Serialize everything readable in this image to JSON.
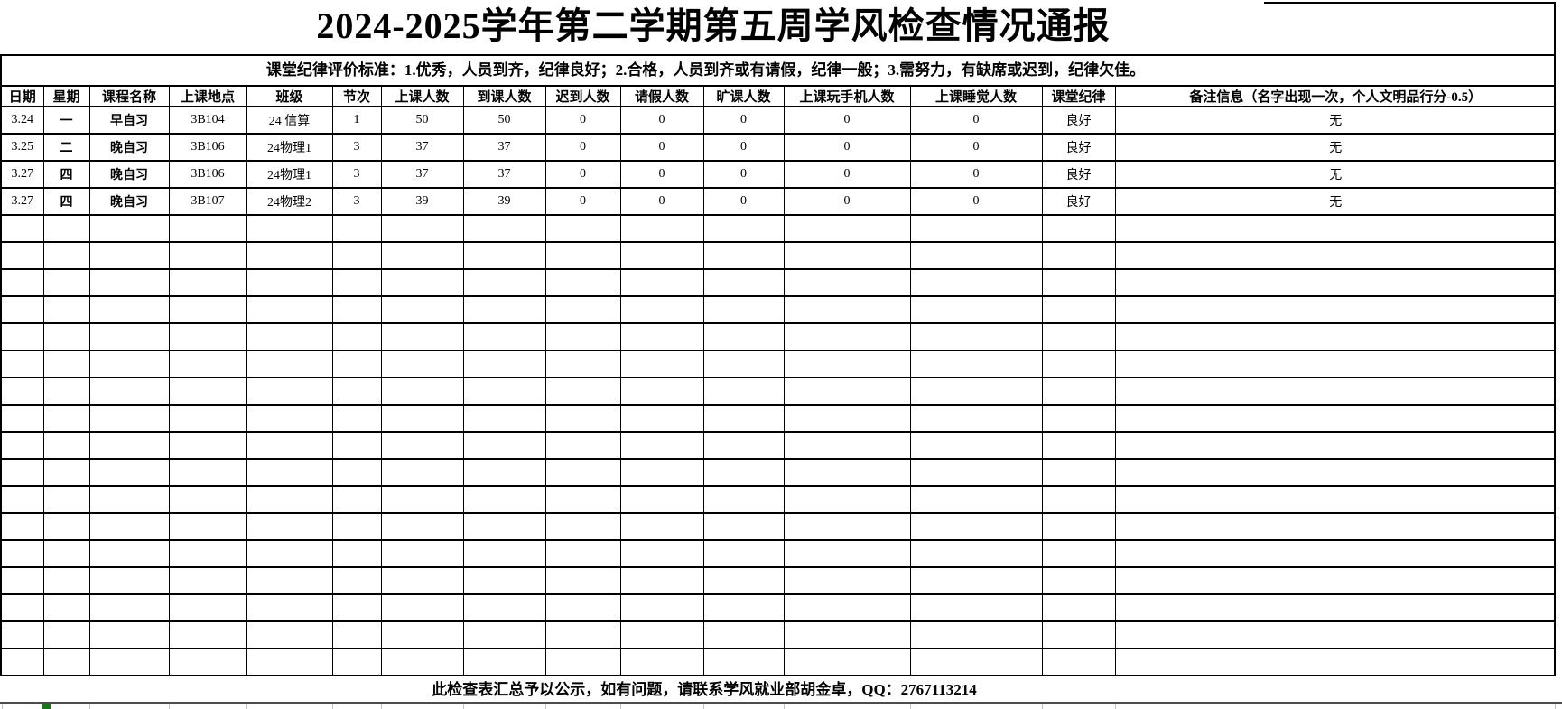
{
  "title": "2024-2025学年第二学期第五周学风检查情况通报",
  "criteria": "课堂纪律评价标准：1.优秀，人员到齐，纪律良好；2.合格，人员到齐或有请假，纪律一般；3.需努力，有缺席或迟到，纪律欠佳。",
  "table": {
    "headers": [
      "日期",
      "星期",
      "课程名称",
      "上课地点",
      "班级",
      "节次",
      "上课人数",
      "到课人数",
      "迟到人数",
      "请假人数",
      "旷课人数",
      "上课玩手机人数",
      "上课睡觉人数",
      "课堂纪律",
      "备注信息（名字出现一次，个人文明品行分-0.5）"
    ],
    "rows": [
      [
        "3.24",
        "一",
        "早自习",
        "3B104",
        "24 信算",
        "1",
        "50",
        "50",
        "0",
        "0",
        "0",
        "0",
        "0",
        "良好",
        "无"
      ],
      [
        "3.25",
        "二",
        "晚自习",
        "3B106",
        "24物理1",
        "3",
        "37",
        "37",
        "0",
        "0",
        "0",
        "0",
        "0",
        "良好",
        "无"
      ],
      [
        "3.27",
        "四",
        "晚自习",
        "3B106",
        "24物理1",
        "3",
        "37",
        "37",
        "0",
        "0",
        "0",
        "0",
        "0",
        "良好",
        "无"
      ],
      [
        "3.27",
        "四",
        "晚自习",
        "3B107",
        "24物理2",
        "3",
        "39",
        "39",
        "0",
        "0",
        "0",
        "0",
        "0",
        "良好",
        "无"
      ]
    ],
    "empty_row_count": 17
  },
  "footer": {
    "note": "此检查表汇总予以公示，如有问题，请联系学风就业部胡金卓，QQ：2767113214"
  },
  "colors": {
    "border": "#000000",
    "bottom_rule": "#4d4d4d",
    "faint_gridline": "#c4c4c4",
    "marker_green": "#157815"
  }
}
